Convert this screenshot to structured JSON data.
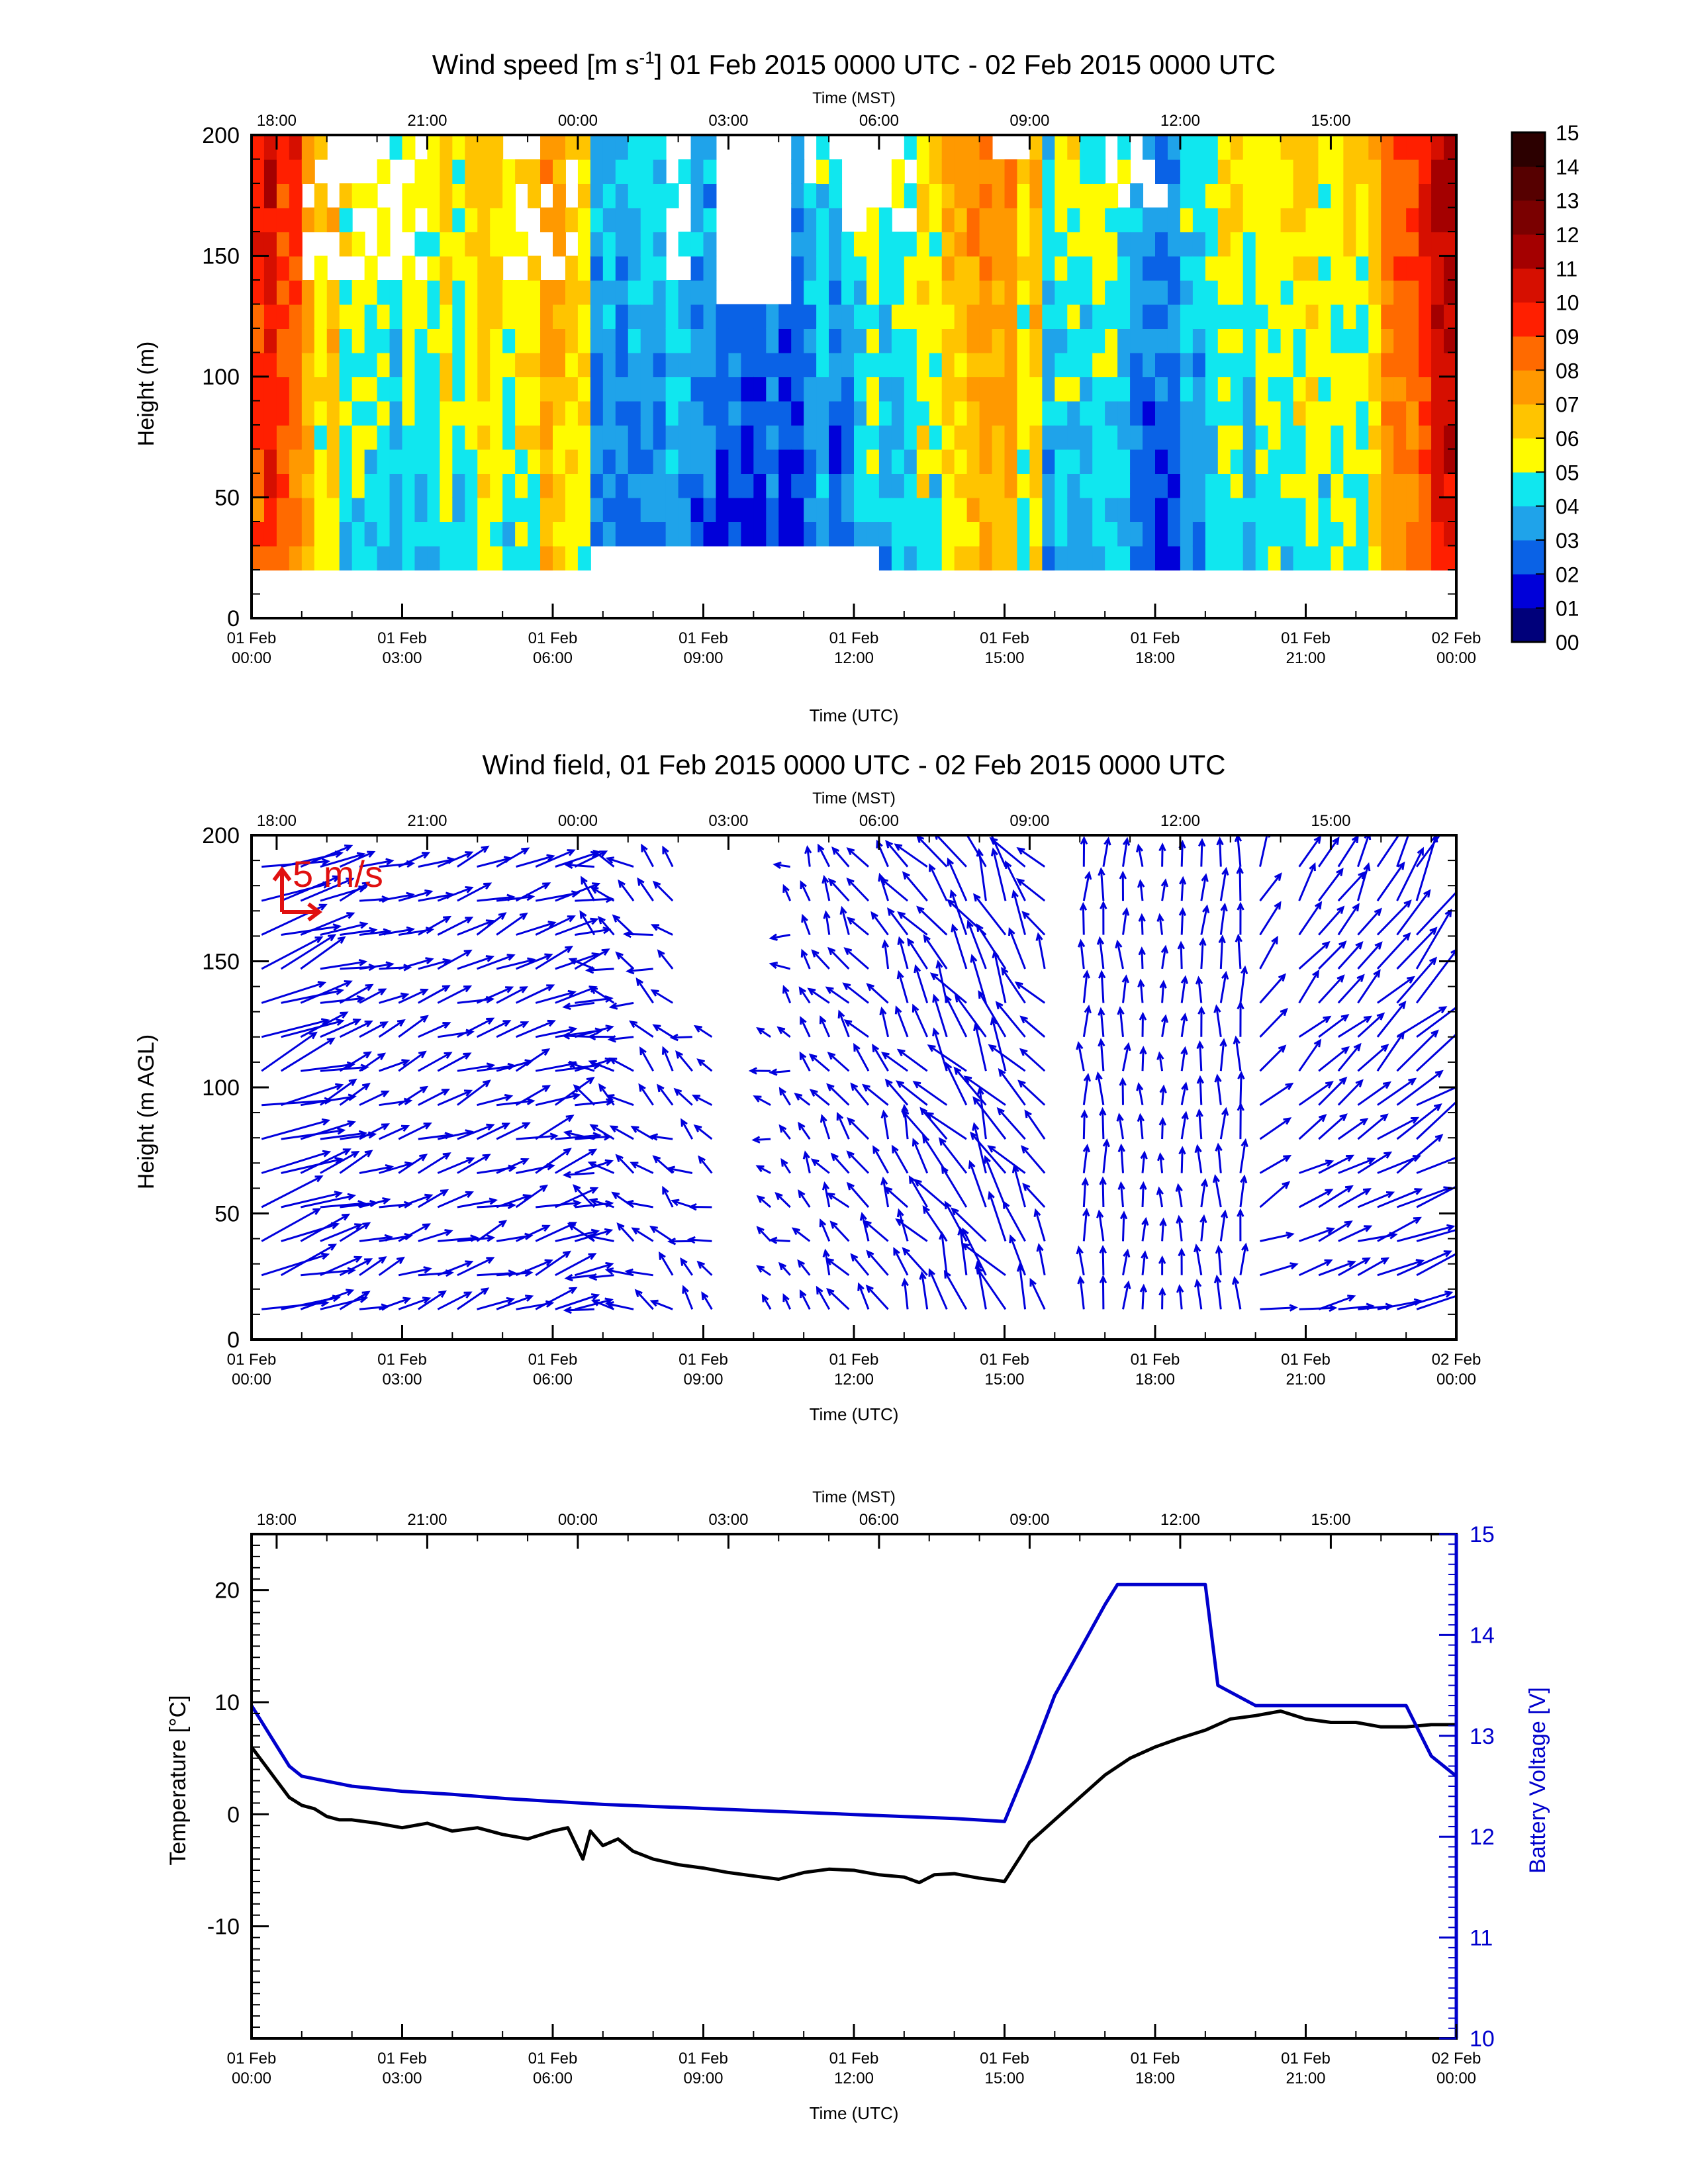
{
  "time_axes": {
    "top_label": "Time (MST)",
    "top_ticks": [
      "18:00",
      "21:00",
      "00:00",
      "03:00",
      "06:00",
      "09:00",
      "12:00",
      "15:00"
    ],
    "bottom_label": "Time (UTC)",
    "bottom_ticks": [
      {
        "line1": "01 Feb",
        "line2": "00:00"
      },
      {
        "line1": "01 Feb",
        "line2": "03:00"
      },
      {
        "line1": "01 Feb",
        "line2": "06:00"
      },
      {
        "line1": "01 Feb",
        "line2": "09:00"
      },
      {
        "line1": "01 Feb",
        "line2": "12:00"
      },
      {
        "line1": "01 Feb",
        "line2": "15:00"
      },
      {
        "line1": "01 Feb",
        "line2": "18:00"
      },
      {
        "line1": "01 Feb",
        "line2": "21:00"
      },
      {
        "line1": "02 Feb",
        "line2": "00:00"
      }
    ]
  },
  "chart_data": [
    {
      "type": "heatmap",
      "title_prefix": "Wind speed [m s",
      "title_sup": "-1",
      "title_suffix": "] 01 Feb 2015 0000 UTC - 02 Feb 2015 0000 UTC",
      "ylabel": "Height (m)",
      "xlabel": "Time (UTC)",
      "x_unit_hours_utc": [
        0,
        24
      ],
      "ylim": [
        0,
        200
      ],
      "yticks": [
        "0",
        "50",
        "100",
        "150",
        "200"
      ],
      "colorbar": {
        "labels": [
          "00",
          "01",
          "02",
          "03",
          "04",
          "05",
          "06",
          "07",
          "08",
          "09",
          "10",
          "11",
          "12",
          "13",
          "14",
          "15"
        ],
        "colors": [
          "#00007a",
          "#0000d9",
          "#0a62e6",
          "#1fa3ea",
          "#10e7ef",
          "#fffb00",
          "#ffc400",
          "#ff9900",
          "#ff6a00",
          "#ff1f00",
          "#d60f00",
          "#a40000",
          "#7a0000",
          "#560000",
          "#2c0000"
        ]
      },
      "speed_profile_hours": [
        0,
        1,
        2,
        3,
        4,
        5,
        6,
        7,
        8,
        9,
        10,
        11,
        12,
        13,
        14,
        15,
        16,
        17,
        18,
        19,
        20,
        21,
        22,
        23,
        24
      ],
      "speed_profile_values": [
        9.5,
        7,
        3.8,
        4.2,
        4.8,
        4.5,
        6,
        3,
        3.2,
        2.5,
        2,
        2,
        3.5,
        3.8,
        5.5,
        6.8,
        3.5,
        3.8,
        2.2,
        3.5,
        4.5,
        4.8,
        4.5,
        8,
        11
      ]
    },
    {
      "type": "vector",
      "title": "Wind field, 01 Feb 2015 0000 UTC - 02 Feb 2015 0000 UTC",
      "ylabel": "Height (m AGL)",
      "xlabel": "Time (UTC)",
      "ylim": [
        0,
        200
      ],
      "yticks": [
        "0",
        "50",
        "100",
        "150",
        "200"
      ],
      "reference_vector": "5 m/s",
      "missing_window_hours_utc": [
        9.3,
        10.3
      ]
    },
    {
      "type": "line",
      "xlabel": "Time (UTC)",
      "ylabel_left": "Temperature [°C]",
      "ylabel_right": "Battery Voltage [V]",
      "ylim_left": [
        -20,
        25
      ],
      "ylim_right": [
        10,
        15
      ],
      "yticks_left": [
        "20",
        "10",
        "0",
        "-10"
      ],
      "yticks_right": [
        "15",
        "14",
        "13",
        "12",
        "11",
        "10"
      ],
      "series": [
        {
          "name": "Temperature",
          "axis": "left",
          "color": "#000000",
          "x": [
            0,
            0.25,
            0.5,
            0.75,
            1,
            1.25,
            1.5,
            1.75,
            2,
            2.5,
            3,
            3.5,
            4,
            4.5,
            5,
            5.5,
            6,
            6.3,
            6.6,
            6.75,
            7,
            7.3,
            7.6,
            8,
            8.5,
            9,
            9.5,
            10,
            10.5,
            11,
            11.5,
            12,
            12.5,
            13,
            13.3,
            13.6,
            14,
            14.5,
            15,
            15.5,
            16,
            16.5,
            17,
            17.5,
            18,
            18.5,
            19,
            19.5,
            20,
            20.5,
            21,
            21.5,
            22,
            22.5,
            23,
            23.5,
            24
          ],
          "y": [
            6,
            4.5,
            3,
            1.5,
            0.8,
            0.5,
            -0.2,
            -0.5,
            -0.5,
            -0.8,
            -1.2,
            -0.8,
            -1.5,
            -1.2,
            -1.8,
            -2.2,
            -1.5,
            -1.2,
            -4,
            -1.5,
            -2.8,
            -2.2,
            -3.3,
            -4,
            -4.5,
            -4.8,
            -5.2,
            -5.5,
            -5.8,
            -5.2,
            -4.9,
            -5,
            -5.4,
            -5.6,
            -6.1,
            -5.4,
            -5.3,
            -5.7,
            -6,
            -2.5,
            -0.5,
            1.5,
            3.5,
            5,
            6,
            6.8,
            7.5,
            8.5,
            8.8,
            9.2,
            8.5,
            8.2,
            8.2,
            7.8,
            7.8,
            8,
            8
          ]
        },
        {
          "name": "Battery Voltage",
          "axis": "right",
          "color": "#0000cc",
          "x": [
            0,
            0.25,
            0.5,
            0.75,
            1,
            1.5,
            2,
            3,
            4,
            5,
            6,
            7,
            8,
            9,
            10,
            11,
            12,
            13,
            14,
            15,
            15.5,
            16,
            16.5,
            17,
            17.25,
            18,
            18.5,
            19,
            19.25,
            20,
            21,
            22,
            22.5,
            23,
            23.5,
            24
          ],
          "y": [
            13.3,
            13.1,
            12.9,
            12.7,
            12.6,
            12.55,
            12.5,
            12.45,
            12.42,
            12.38,
            12.35,
            12.32,
            12.3,
            12.28,
            12.26,
            12.24,
            12.22,
            12.2,
            12.18,
            12.15,
            12.75,
            13.4,
            13.85,
            14.3,
            14.5,
            14.5,
            14.5,
            14.5,
            13.5,
            13.3,
            13.3,
            13.3,
            13.3,
            13.3,
            12.8,
            12.6
          ]
        }
      ]
    }
  ]
}
